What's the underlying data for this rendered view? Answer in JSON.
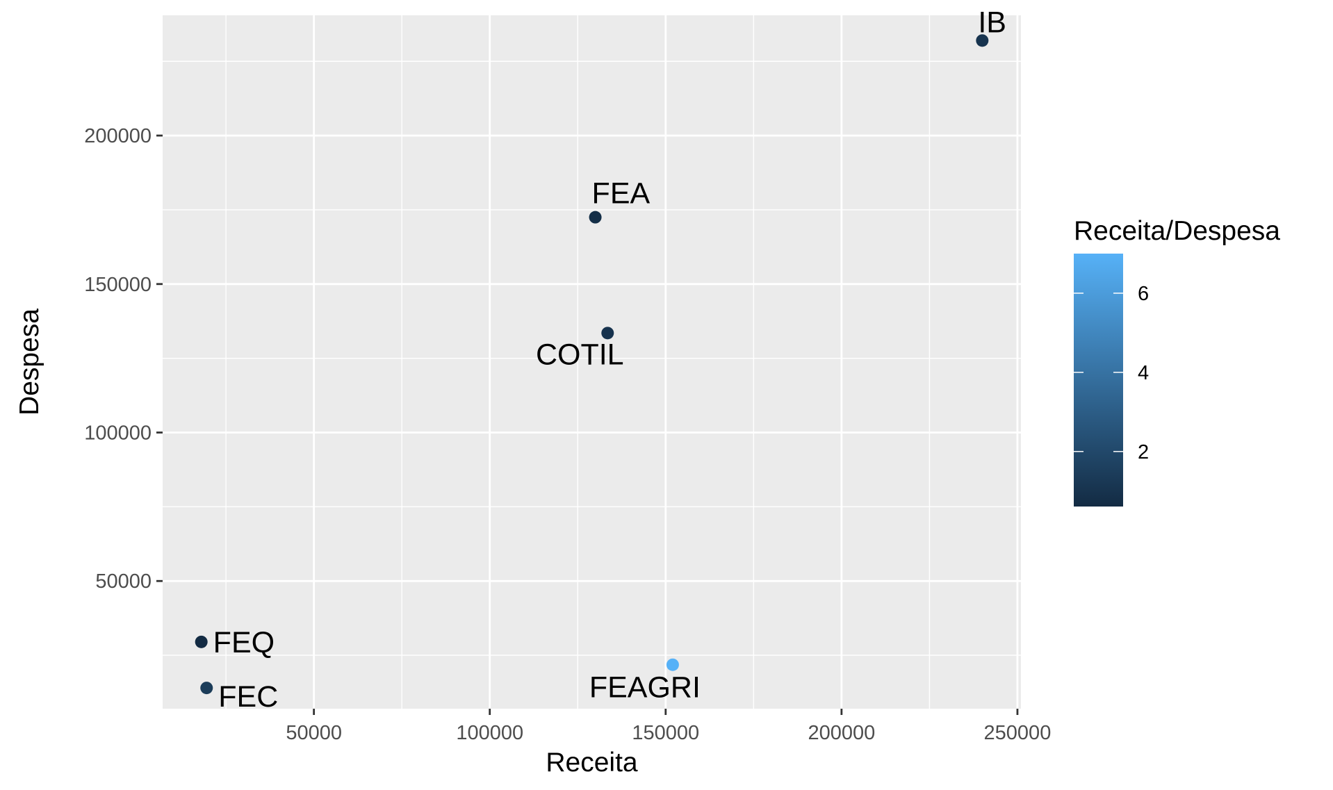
{
  "chart_data": {
    "type": "scatter",
    "xlabel": "Receita",
    "ylabel": "Despesa",
    "xlim": [
      7000,
      251000
    ],
    "ylim": [
      7000,
      240500
    ],
    "x_ticks": [
      50000,
      100000,
      150000,
      200000,
      250000
    ],
    "x_tick_labels": [
      "50000",
      "100000",
      "150000",
      "200000",
      "250000"
    ],
    "y_ticks": [
      50000,
      100000,
      150000,
      200000
    ],
    "y_tick_labels": [
      "50000",
      "100000",
      "150000",
      "200000"
    ],
    "grid": true,
    "points": [
      {
        "label": "IB",
        "x": 240000,
        "y": 232000,
        "ratio": 1.03
      },
      {
        "label": "FEA",
        "x": 130000,
        "y": 172500,
        "ratio": 0.75
      },
      {
        "label": "COTIL",
        "x": 133500,
        "y": 133500,
        "ratio": 1.0
      },
      {
        "label": "FEQ",
        "x": 18000,
        "y": 29500,
        "ratio": 0.61
      },
      {
        "label": "FEC",
        "x": 19500,
        "y": 14000,
        "ratio": 1.4
      },
      {
        "label": "FEAGRI",
        "x": 152000,
        "y": 21800,
        "ratio": 7.0
      }
    ],
    "color_scale": {
      "title": "Receita/Despesa",
      "min": 0.61,
      "max": 7.0,
      "low_color": "#132B43",
      "high_color": "#56B1F7",
      "ticks": [
        2,
        4,
        6
      ],
      "tick_labels": [
        "2",
        "4",
        "6"
      ]
    },
    "legend_position": "right"
  }
}
